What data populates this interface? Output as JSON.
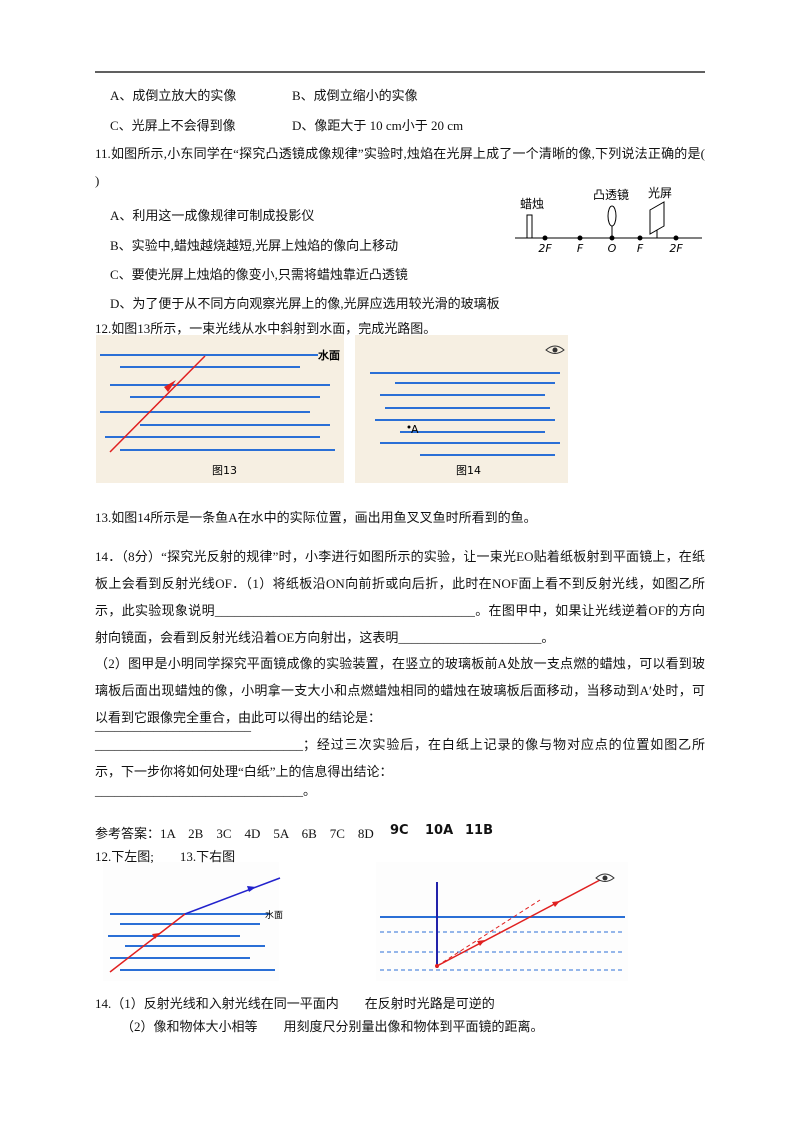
{
  "q10_options": [
    "A、成倒立放大的实像",
    "B、成倒立缩小的实像",
    "C、光屏上不会得到像",
    "D、像距大于 10 cm小于 20 cm"
  ],
  "q11": {
    "stem": "11.如图所示,小东同学在“探究凸透镜成像规律”实验时,烛焰在光屏上成了一个清晰的像,下列说法正确的是(　　)",
    "options": [
      "A、利用这一成像规律可制成投影仪",
      "B、实验中,蜡烛越烧越短,光屏上烛焰的像向上移动",
      "C、要使光屏上烛焰的像变小,只需将蜡烛靠近凸透镜",
      "D、为了便于从不同方向观察光屏上的像,光屏应选用较光滑的玻璃板"
    ],
    "figure": {
      "labels": [
        "蜡烛",
        "凸透镜",
        "光屏"
      ],
      "axis": [
        "2F",
        "F",
        "O",
        "F",
        "2F"
      ]
    }
  },
  "q12": {
    "stem": "12.如图13所示，一束光线从水中斜射到水面，完成光路图。",
    "fig13": {
      "surface": "水面",
      "caption": "图13"
    },
    "fig14": {
      "point": "A",
      "caption": "图14"
    }
  },
  "q13": "13.如图14所示是一条鱼A在水中的实际位置，画出用鱼叉叉鱼时所看到的鱼。",
  "q14": {
    "part1": "14．（8分）“探究光反射的规律”时，小李进行如图所示的实验，让一束光EO贴着纸板射到平面镜上，在纸板上会看到反射光线OF．（1）将纸板沿ON向前折或向后折，此时在NOF面上看不到反射光线，如图乙所示，此实验现象说明________________________________________。在图甲中，如果让光线逆着OF的方向射向镜面，会看到反射光线沿着OE方向射出，这表明______________________。",
    "part2": "（2）图甲是小明同学探究平面镜成像的实验装置，在竖立的玻璃板前A处放一支点燃的蜡烛，可以看到玻璃板后面出现蜡烛的像，小明拿一支大小和点燃蜡烛相同的蜡烛在玻璃板后面移动，当移动到A′处时，可以看到它跟像完全重合，由此可以得出的结论是：",
    "blank": "________________________",
    "part3": "________________________________；经过三次实验后，在白纸上记录的像与物对应点的位置如图乙所示，下一步你将如何处理“白纸”上的信息得出结论：",
    "part4": "________________________________。"
  },
  "answers": {
    "line1": "参考答案：1A　2B　3C　4D　5A　6B　7C　8D",
    "extra": [
      "9C",
      "10A",
      "11B"
    ],
    "line2": "12.下左图;　　13.下右图",
    "fig_surface": "水面",
    "q14": [
      "14.（1）反射光线和入射光线在同一平面内　　在反射时光路是可逆的",
      "（2）像和物体大小相等　　用刻度尺分别量出像和物体到平面镜的距离。"
    ]
  }
}
